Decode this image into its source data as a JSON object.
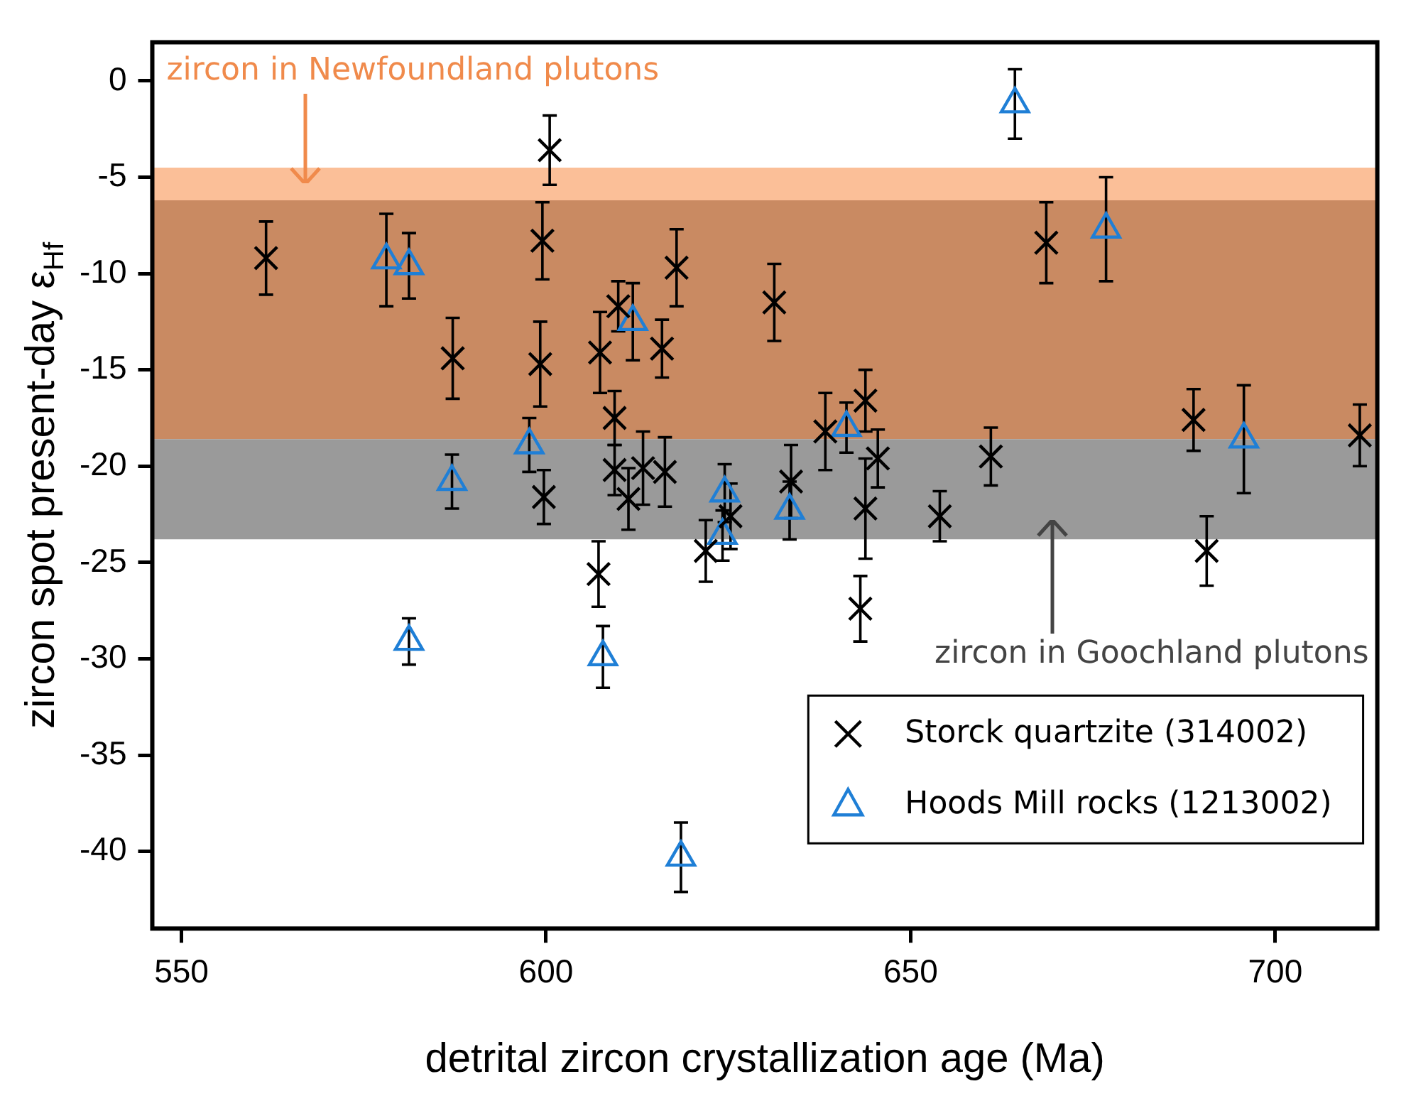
{
  "chart_data": {
    "type": "scatter",
    "xlabel": "detrital zircon crystallization age (Ma)",
    "ylabel": "zircon spot present-day ε$_{Hf}$",
    "xlim": [
      546,
      714
    ],
    "xticks": [
      550,
      600,
      650,
      700
    ],
    "ylim": [
      -44,
      2
    ],
    "yticks": [
      -40,
      -35,
      -30,
      -25,
      -20,
      -15,
      -10,
      -5,
      0
    ],
    "grid": false,
    "legend": "bottom right",
    "bands": [
      {
        "axis": "y",
        "from": -6.2,
        "to": -4.5,
        "color": "#fbbf98",
        "label": "zircon in Newfoundland plutons"
      },
      {
        "axis": "y",
        "from": -18.6,
        "to": -6.2,
        "color": "#c98a62"
      },
      {
        "axis": "y",
        "from": -23.8,
        "to": -18.6,
        "color": "#9a9a9a",
        "label": "zircon in Goochland plutons"
      }
    ],
    "series": [
      {
        "name": "Storck quartzite (314002)",
        "color": "#000000",
        "marker": "cross",
        "x": [
          561.6,
          587.2,
          600.5,
          599.5,
          599.2,
          599.7,
          607.4,
          609.9,
          609.4,
          609.4,
          611.3,
          613.3,
          615.9,
          616.3,
          617.9,
          607.2,
          621.9,
          625.3,
          631.3,
          633.6,
          638.3,
          643.8,
          645.5,
          643.8,
          643.1,
          654.0,
          661.0,
          668.6,
          688.8,
          690.6,
          711.6
        ],
        "values": [
          -9.2,
          -14.4,
          -3.6,
          -8.3,
          -14.7,
          -21.6,
          -14.1,
          -11.7,
          -17.5,
          -20.2,
          -21.7,
          -20.1,
          -13.9,
          -20.3,
          -9.7,
          -25.6,
          -24.4,
          -22.6,
          -11.5,
          -20.8,
          -18.2,
          -16.6,
          -19.6,
          -22.2,
          -27.4,
          -22.6,
          -19.5,
          -8.4,
          -17.6,
          -24.4,
          -18.4
        ],
        "errors": [
          1.9,
          2.1,
          1.8,
          2.0,
          2.2,
          1.4,
          2.1,
          1.3,
          1.4,
          1.3,
          1.6,
          1.9,
          1.5,
          1.8,
          2.0,
          1.7,
          1.6,
          1.7,
          2.0,
          1.9,
          2.0,
          1.6,
          1.5,
          2.6,
          1.7,
          1.3,
          1.5,
          2.1,
          1.6,
          1.8,
          1.6
        ]
      },
      {
        "name": "Hoods Mill rocks (1213002)",
        "color": "#1f7fd6",
        "marker": "triangle",
        "x": [
          578.1,
          581.2,
          587.1,
          581.2,
          597.7,
          611.9,
          607.8,
          618.5,
          624.5,
          624.2,
          633.4,
          641.2,
          664.3,
          676.8,
          695.7
        ],
        "values": [
          -9.3,
          -9.6,
          -20.8,
          -29.1,
          -18.9,
          -12.5,
          -29.9,
          -40.3,
          -21.4,
          -23.6,
          -22.3,
          -18.0,
          -1.2,
          -7.7,
          -18.6
        ],
        "errors": [
          2.4,
          1.7,
          1.4,
          1.2,
          1.4,
          2.0,
          1.6,
          1.8,
          1.5,
          1.3,
          1.5,
          1.3,
          1.8,
          2.7,
          2.8
        ]
      }
    ]
  }
}
